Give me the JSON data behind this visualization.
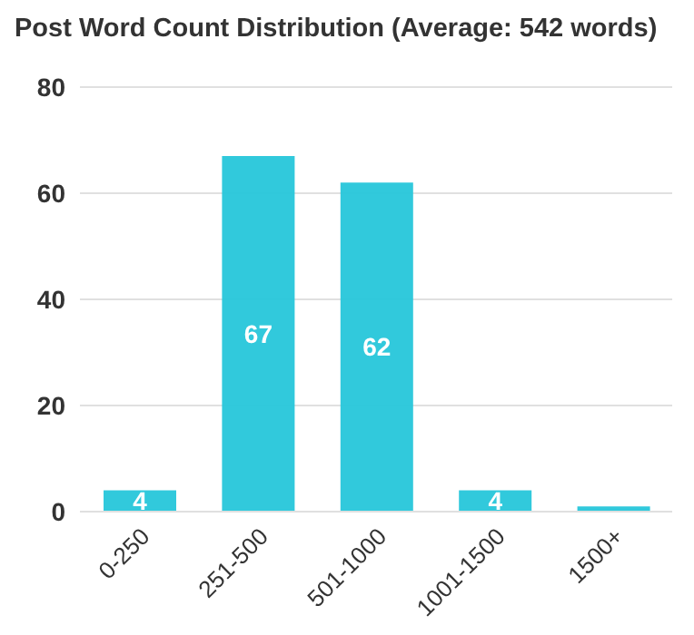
{
  "chart_data": {
    "type": "bar",
    "title": "Post Word Count Distribution (Average: 542 words)",
    "categories": [
      "0-250",
      "251-500",
      "501-1000",
      "1001-1500",
      "1500+"
    ],
    "values": [
      4,
      67,
      62,
      4,
      1
    ],
    "value_labels": [
      "4",
      "67",
      "62",
      "4",
      null
    ],
    "color": "#26c6da",
    "ylim": [
      0,
      80
    ],
    "yticks": [
      0,
      20,
      40,
      60,
      80
    ],
    "grid": "y"
  }
}
